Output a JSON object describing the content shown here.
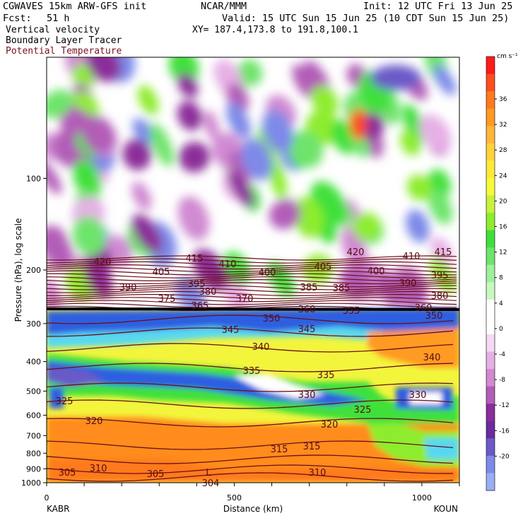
{
  "header": {
    "model": "CGWAVES 15km ARW-GFS init",
    "org": "NCAR/MMM",
    "init": "Init: 12 UTC Fri 13 Jun 25",
    "fcst_label": "Fcst:",
    "fcst_value": "51 h",
    "valid": "Valid: 15 UTC Sun 15 Jun 25 (10 CDT Sun 15 Jun 25)",
    "field1": "Vertical velocity",
    "field2": "Boundary Layer Tracer",
    "field3": "Potential Temperature",
    "xy": "XY= 187.4,173.8 to 191.8,100.1"
  },
  "colors": {
    "theta_line": "#6b0f1a",
    "field3_text": "#7a1020",
    "frame": "#000000"
  },
  "chart_data": {
    "type": "heatmap",
    "xlabel": "Distance (km)",
    "ylabel": "Pressure (hPa), log scale",
    "x_ticks": [
      {
        "value": 0,
        "label": "0"
      },
      {
        "value": 500,
        "label": "500"
      },
      {
        "value": 1000,
        "label": "1000"
      }
    ],
    "xlim": [
      0,
      1100
    ],
    "y_ticks": [
      {
        "value": 100,
        "label": "100"
      },
      {
        "value": 200,
        "label": "200"
      },
      {
        "value": 300,
        "label": "300"
      },
      {
        "value": 400,
        "label": "400"
      },
      {
        "value": 500,
        "label": "500"
      },
      {
        "value": 600,
        "label": "600"
      },
      {
        "value": 700,
        "label": "700"
      },
      {
        "value": 800,
        "label": "800"
      },
      {
        "value": 900,
        "label": "900"
      },
      {
        "value": 1000,
        "label": "1000"
      }
    ],
    "y_scale": "log",
    "ylim": [
      1000,
      40
    ],
    "endpoints": {
      "left": "KABR",
      "right": "KOUN"
    },
    "colorbar": {
      "unit": "cm s⁻¹",
      "labels": [
        36,
        32,
        28,
        24,
        20,
        16,
        12,
        8,
        4,
        0,
        -4,
        -8,
        -12,
        -16,
        -20
      ],
      "colors": [
        "#ff1a1a",
        "#ff4d1f",
        "#ff7a1f",
        "#ff9a22",
        "#ffb53b",
        "#ffd23a",
        "#ffe93a",
        "#f5fa3a",
        "#c8f23a",
        "#8eec2e",
        "#3fe03a",
        "#6ee46a",
        "#9ff09a",
        "#c8f8c0",
        "#ffffff",
        "#ffffff",
        "#f4d8f4",
        "#e6b0e6",
        "#d08ad2",
        "#b25db8",
        "#8b2d9a",
        "#6d2a9e",
        "#6a5ac8",
        "#7d8ae8",
        "#9aaef2"
      ]
    },
    "theta_labels": [
      {
        "text": "420",
        "x": 145,
        "y": 375
      },
      {
        "text": "415",
        "x": 275,
        "y": 370
      },
      {
        "text": "410",
        "x": 322,
        "y": 378
      },
      {
        "text": "420",
        "x": 503,
        "y": 361
      },
      {
        "text": "410",
        "x": 582,
        "y": 367
      },
      {
        "text": "415",
        "x": 627,
        "y": 361
      },
      {
        "text": "405",
        "x": 228,
        "y": 389
      },
      {
        "text": "400",
        "x": 378,
        "y": 390
      },
      {
        "text": "405",
        "x": 457,
        "y": 382
      },
      {
        "text": "400",
        "x": 532,
        "y": 388
      },
      {
        "text": "395",
        "x": 622,
        "y": 394
      },
      {
        "text": "390",
        "x": 181,
        "y": 411
      },
      {
        "text": "395",
        "x": 278,
        "y": 406
      },
      {
        "text": "385",
        "x": 437,
        "y": 411
      },
      {
        "text": "385",
        "x": 483,
        "y": 412
      },
      {
        "text": "390",
        "x": 577,
        "y": 405
      },
      {
        "text": "380",
        "x": 294,
        "y": 417
      },
      {
        "text": "380",
        "x": 622,
        "y": 423
      },
      {
        "text": "375",
        "x": 236,
        "y": 427
      },
      {
        "text": "370",
        "x": 346,
        "y": 427
      },
      {
        "text": "365",
        "x": 283,
        "y": 437
      },
      {
        "text": "360",
        "x": 434,
        "y": 442
      },
      {
        "text": "355",
        "x": 497,
        "y": 444
      },
      {
        "text": "360",
        "x": 599,
        "y": 440
      },
      {
        "text": "350",
        "x": 384,
        "y": 455
      },
      {
        "text": "350",
        "x": 614,
        "y": 451
      },
      {
        "text": "345",
        "x": 326,
        "y": 471
      },
      {
        "text": "345",
        "x": 434,
        "y": 470
      },
      {
        "text": "340",
        "x": 369,
        "y": 495
      },
      {
        "text": "340",
        "x": 611,
        "y": 510
      },
      {
        "text": "335",
        "x": 356,
        "y": 529
      },
      {
        "text": "335",
        "x": 461,
        "y": 535
      },
      {
        "text": "330",
        "x": 434,
        "y": 563
      },
      {
        "text": "330",
        "x": 591,
        "y": 563
      },
      {
        "text": "325",
        "x": 91,
        "y": 572
      },
      {
        "text": "325",
        "x": 513,
        "y": 584
      },
      {
        "text": "320",
        "x": 133,
        "y": 600
      },
      {
        "text": "320",
        "x": 466,
        "y": 605
      },
      {
        "text": "315",
        "x": 395,
        "y": 640
      },
      {
        "text": "315",
        "x": 441,
        "y": 636
      },
      {
        "text": "310",
        "x": 139,
        "y": 667
      },
      {
        "text": "310",
        "x": 449,
        "y": 673
      },
      {
        "text": "305",
        "x": 95,
        "y": 673
      },
      {
        "text": "305",
        "x": 220,
        "y": 675
      },
      {
        "text": "304",
        "x": 298,
        "y": 688
      },
      {
        "text": "L",
        "x": 295,
        "y": 673
      }
    ]
  }
}
